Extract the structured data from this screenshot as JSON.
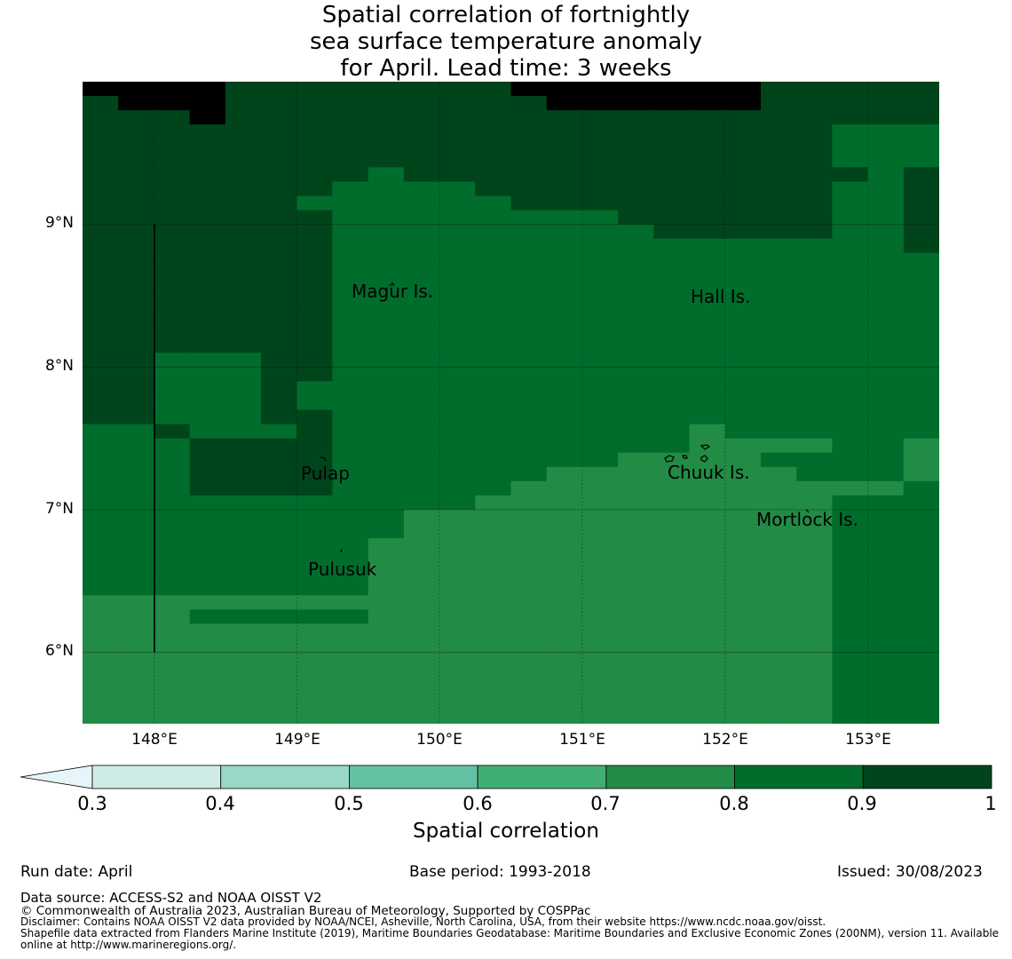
{
  "title": {
    "line1": "Spatial correlation of fortnightly",
    "line2": "sea surface temperature anomaly",
    "line3": "for April. Lead time: 3 weeks"
  },
  "map": {
    "lon_range": [
      147.5,
      153.5
    ],
    "lat_range": [
      5.5,
      10.0
    ],
    "y_ticks": [
      "9°N",
      "8°N",
      "7°N",
      "6°N"
    ],
    "x_ticks": [
      "148°E",
      "149°E",
      "150°E",
      "151°E",
      "152°E",
      "153°E"
    ],
    "place_labels": [
      "Magur Is.",
      "Hall Is.",
      "Pulap",
      "Chuuk Is.",
      "Mortlock Is.",
      "Pulusuk"
    ],
    "grid_resolution_deg": 0.25,
    "correlation_grid_rows_north_to_south": [
      "888877777777888888877777",
      "788877777777788888877777",
      "777877777777777777777777",
      "777777777777777777777666",
      "777777777777777777777666",
      "777777777777777777777666",
      "777777776777777777777767",
      "777777766667777777777667",
      "777777666666777777777667",
      "777777766666666777777667",
      "777777766666666677777667",
      "777777766666666666666667",
      "777777766666666666666666",
      "777777766666666666666666",
      "777777766666666666666666",
      "777777766666666666666666",
      "777777766666666666666666",
      "777777766666666666666666",
      "777777766666666666666666",
      "776667766666666666666666",
      "776667766666666666666666",
      "776667666666666666666666",
      "776667666666666666666666",
      "776667766666666666666666",
      "667666766666666665666666",
      "666777766666666665555665",
      "666777766666666555566665",
      "666777766666655555556665",
      "666777766666555555555556",
      "666666666665555555555666",
      "666666666555555555555666",
      "666666666555555555555666",
      "666666665555555555555666",
      "666666665555555555555666",
      "666666665555555555555666",
      "666666665555555555555666",
      "555555555555555555555666",
      "555666665555555555555666",
      "555555555555555555555666",
      "555555555555555555555666",
      "555555555555555555555666",
      "555555555555555555555666",
      "555555555555555555555666",
      "555555555555555555555666",
      "555555555555555555555666"
    ]
  },
  "colorbar": {
    "ticks": [
      "0.3",
      "0.4",
      "0.5",
      "0.6",
      "0.7",
      "0.8",
      "0.9",
      "1"
    ],
    "colors": [
      "#e6f5f9",
      "#cdece5",
      "#99d8c9",
      "#62c1a3",
      "#40ae73",
      "#228b45",
      "#006d2c",
      "#00441b"
    ],
    "label": "Spatial correlation"
  },
  "footer": {
    "run_date": "Run date: April",
    "base_period": "Base period: 1993-2018",
    "issued": "Issued: 30/08/2023",
    "data_source": "Data source: ACCESS-S2 and NOAA OISST V2",
    "copyright": "© Commonwealth of Australia 2023, Australian Bureau of Meteorology, Supported by COSPPac",
    "disclaimer": "Disclaimer: Contains NOAA OISST V2 data provided by NOAA/NCEI, Asheville, North Carolina, USA, from their website https://www.ncdc.noaa.gov/oisst.",
    "shapefile1": "Shapefile data extracted from Flanders Marine Institute (2019), Maritime Boundaries Geodatabase: Maritime Boundaries and Exclusive Economic Zones (200NM), version 11. Available",
    "shapefile2": "online at http://www.marineregions.org/."
  }
}
